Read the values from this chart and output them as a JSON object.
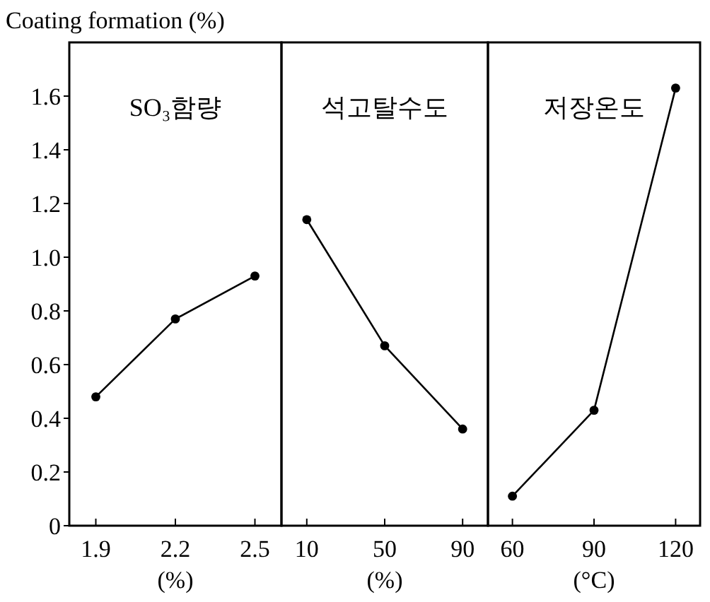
{
  "chart_data": [
    {
      "type": "line",
      "title": "SO₃함량",
      "ylabel": "Coating formation (%)",
      "xlabel": "(%)",
      "marker": "circle",
      "color": "#000000",
      "x": [
        1.9,
        2.2,
        2.5
      ],
      "values": [
        0.48,
        0.77,
        0.93
      ],
      "xlim": [
        1.8,
        2.6
      ],
      "xticks": [
        1.9,
        2.2,
        2.5
      ],
      "ylim": [
        0,
        1.8
      ],
      "yticks": [
        0,
        0.2,
        0.4,
        0.6,
        0.8,
        {
          "value": 1,
          "label": "1.0"
        },
        1.2,
        1.4,
        1.6
      ]
    },
    {
      "type": "line",
      "title": "석고탈수도",
      "xlabel": "(%)",
      "marker": "circle",
      "color": "#000000",
      "x": [
        10,
        50,
        90
      ],
      "values": [
        1.14,
        0.67,
        0.36
      ],
      "xlim": [
        -3,
        103
      ],
      "xticks": [
        10,
        50,
        90
      ],
      "ylim": [
        0,
        1.8
      ],
      "tick_labels": "x"
    },
    {
      "type": "line",
      "title": "저장온도",
      "xlabel": "(°C)",
      "marker": "circle",
      "color": "#000000",
      "x": [
        60,
        90,
        120
      ],
      "values": [
        0.11,
        0.43,
        1.63
      ],
      "xlim": [
        51,
        129
      ],
      "xticks": [
        60,
        90,
        120
      ],
      "ylim": [
        0,
        1.8
      ],
      "tick_labels": "x"
    }
  ]
}
